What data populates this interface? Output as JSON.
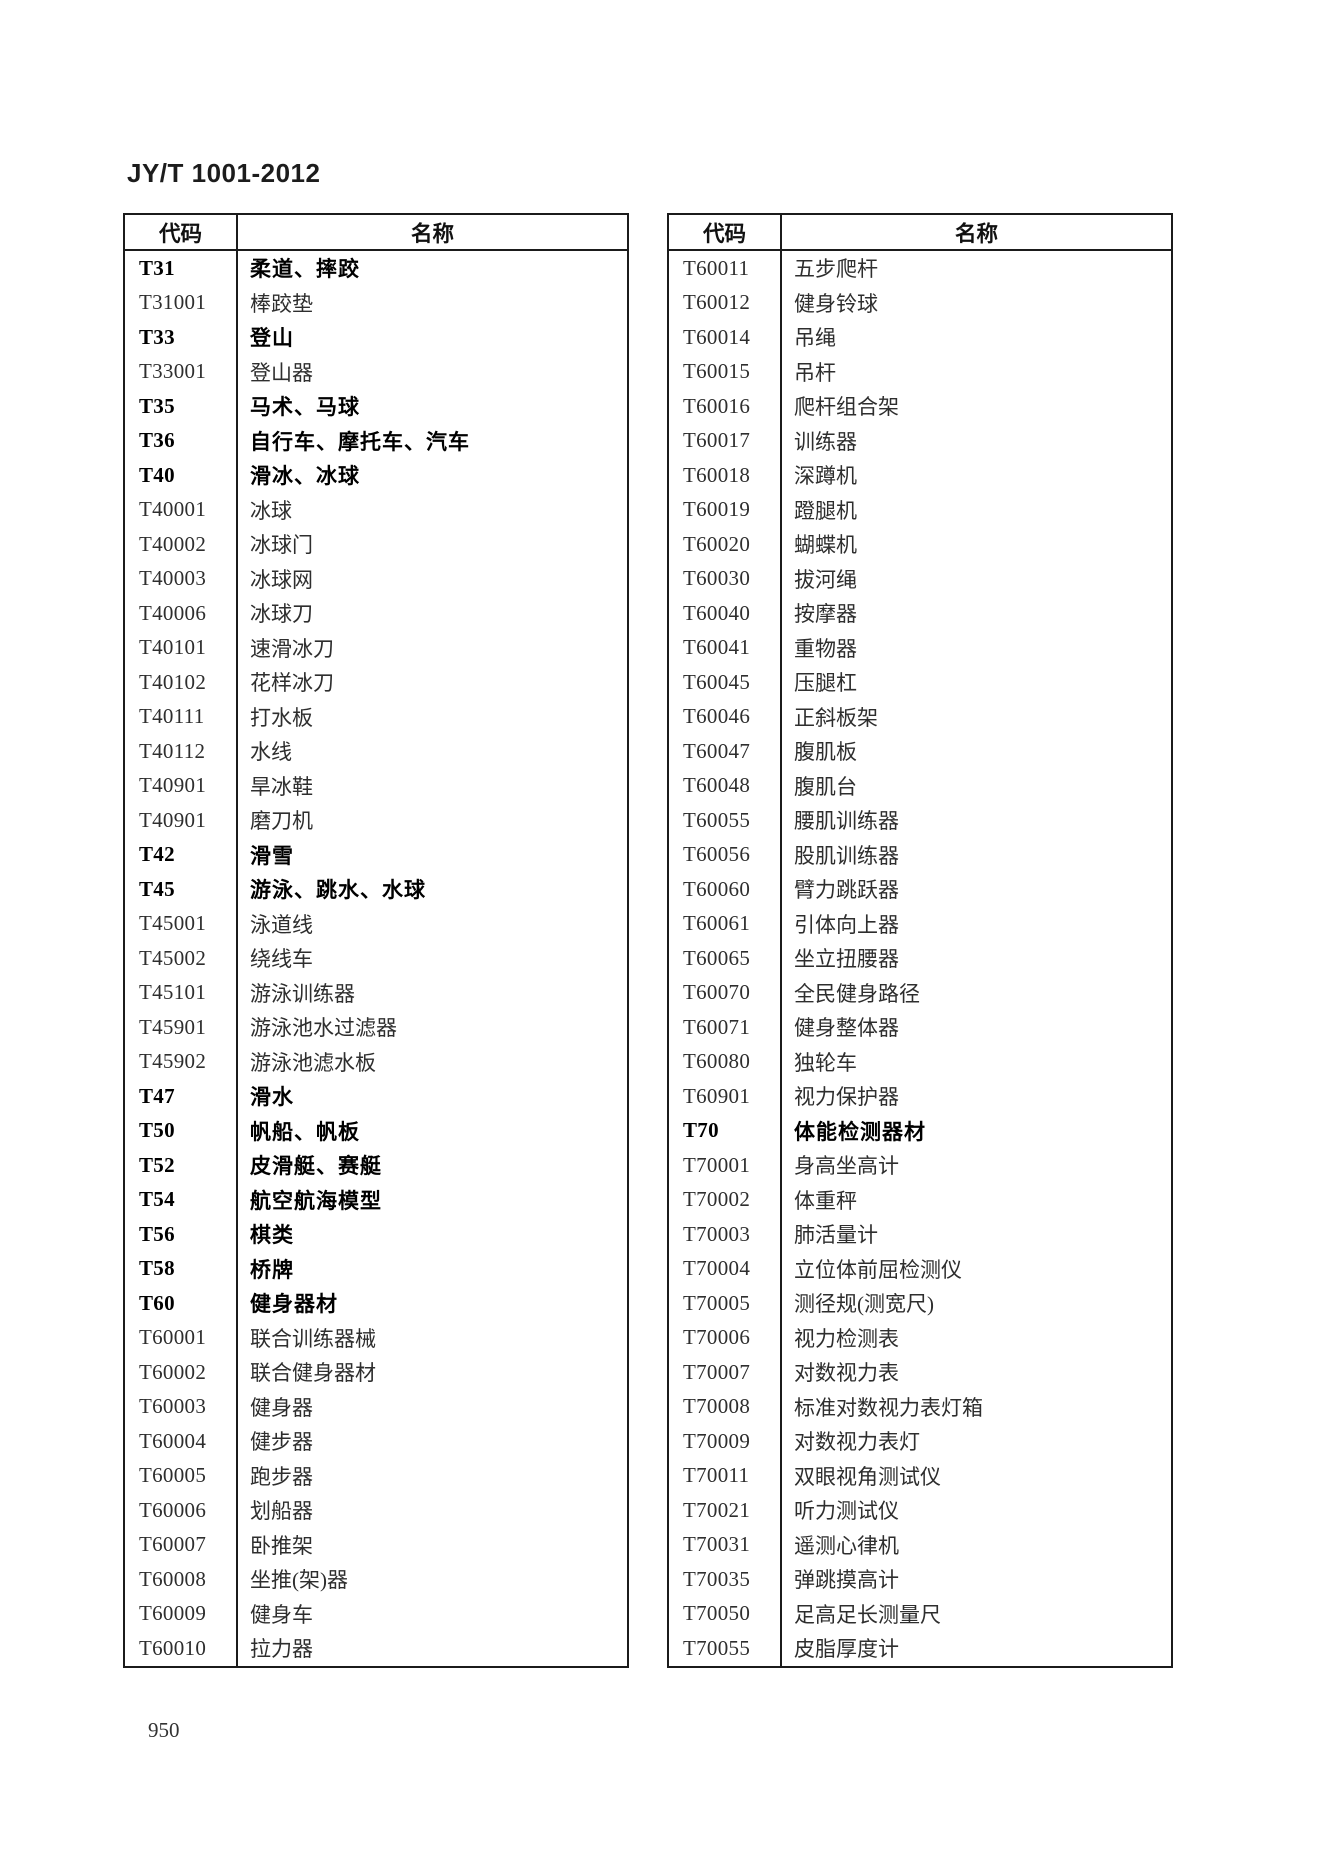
{
  "page": {
    "doc_code": "JY/T 1001-2012",
    "page_number": "950"
  },
  "tables": [
    {
      "headers": {
        "code": "代码",
        "name": "名称"
      },
      "rows": [
        {
          "code": "T31",
          "name": "柔道、摔跤",
          "bold": true
        },
        {
          "code": "T31001",
          "name": "棒跤垫"
        },
        {
          "code": "T33",
          "name": "登山",
          "bold": true
        },
        {
          "code": "T33001",
          "name": "登山器"
        },
        {
          "code": "T35",
          "name": "马术、马球",
          "bold": true
        },
        {
          "code": "T36",
          "name": "自行车、摩托车、汽车",
          "bold": true
        },
        {
          "code": "T40",
          "name": "滑冰、冰球",
          "bold": true
        },
        {
          "code": "T40001",
          "name": "冰球"
        },
        {
          "code": "T40002",
          "name": "冰球门"
        },
        {
          "code": "T40003",
          "name": "冰球网"
        },
        {
          "code": "T40006",
          "name": "冰球刀"
        },
        {
          "code": "T40101",
          "name": "速滑冰刀"
        },
        {
          "code": "T40102",
          "name": "花样冰刀"
        },
        {
          "code": "T40111",
          "name": "打水板"
        },
        {
          "code": "T40112",
          "name": "水线"
        },
        {
          "code": "T40901",
          "name": "旱冰鞋"
        },
        {
          "code": "T40901",
          "name": "磨刀机"
        },
        {
          "code": "T42",
          "name": "滑雪",
          "bold": true
        },
        {
          "code": "T45",
          "name": "游泳、跳水、水球",
          "bold": true
        },
        {
          "code": "T45001",
          "name": "泳道线"
        },
        {
          "code": "T45002",
          "name": "绕线车"
        },
        {
          "code": "T45101",
          "name": "游泳训练器"
        },
        {
          "code": "T45901",
          "name": "游泳池水过滤器"
        },
        {
          "code": "T45902",
          "name": "游泳池滤水板"
        },
        {
          "code": "T47",
          "name": "滑水",
          "bold": true
        },
        {
          "code": "T50",
          "name": "帆船、帆板",
          "bold": true
        },
        {
          "code": "T52",
          "name": "皮滑艇、赛艇",
          "bold": true
        },
        {
          "code": "T54",
          "name": "航空航海模型",
          "bold": true
        },
        {
          "code": "T56",
          "name": "棋类",
          "bold": true
        },
        {
          "code": "T58",
          "name": "桥牌",
          "bold": true
        },
        {
          "code": "T60",
          "name": "健身器材",
          "bold": true
        },
        {
          "code": "T60001",
          "name": "联合训练器械"
        },
        {
          "code": "T60002",
          "name": "联合健身器材"
        },
        {
          "code": "T60003",
          "name": "健身器"
        },
        {
          "code": "T60004",
          "name": "健步器"
        },
        {
          "code": "T60005",
          "name": "跑步器"
        },
        {
          "code": "T60006",
          "name": "划船器"
        },
        {
          "code": "T60007",
          "name": "卧推架"
        },
        {
          "code": "T60008",
          "name": "坐推(架)器"
        },
        {
          "code": "T60009",
          "name": "健身车"
        },
        {
          "code": "T60010",
          "name": "拉力器"
        }
      ]
    },
    {
      "headers": {
        "code": "代码",
        "name": "名称"
      },
      "rows": [
        {
          "code": "T60011",
          "name": "五步爬杆"
        },
        {
          "code": "T60012",
          "name": "健身铃球"
        },
        {
          "code": "T60014",
          "name": "吊绳"
        },
        {
          "code": "T60015",
          "name": "吊杆"
        },
        {
          "code": "T60016",
          "name": "爬杆组合架"
        },
        {
          "code": "T60017",
          "name": "训练器"
        },
        {
          "code": "T60018",
          "name": "深蹲机"
        },
        {
          "code": "T60019",
          "name": "蹬腿机"
        },
        {
          "code": "T60020",
          "name": "蝴蝶机"
        },
        {
          "code": "T60030",
          "name": "拔河绳"
        },
        {
          "code": "T60040",
          "name": "按摩器"
        },
        {
          "code": "T60041",
          "name": "重物器"
        },
        {
          "code": "T60045",
          "name": "压腿杠"
        },
        {
          "code": "T60046",
          "name": "正斜板架"
        },
        {
          "code": "T60047",
          "name": "腹肌板"
        },
        {
          "code": "T60048",
          "name": "腹肌台"
        },
        {
          "code": "T60055",
          "name": "腰肌训练器"
        },
        {
          "code": "T60056",
          "name": "股肌训练器"
        },
        {
          "code": "T60060",
          "name": "臂力跳跃器"
        },
        {
          "code": "T60061",
          "name": "引体向上器"
        },
        {
          "code": "T60065",
          "name": "坐立扭腰器"
        },
        {
          "code": "T60070",
          "name": "全民健身路径"
        },
        {
          "code": "T60071",
          "name": "健身整体器"
        },
        {
          "code": "T60080",
          "name": "独轮车"
        },
        {
          "code": "T60901",
          "name": "视力保护器"
        },
        {
          "code": "T70",
          "name": "体能检测器材",
          "bold": true
        },
        {
          "code": "T70001",
          "name": "身高坐高计"
        },
        {
          "code": "T70002",
          "name": "体重秤"
        },
        {
          "code": "T70003",
          "name": "肺活量计"
        },
        {
          "code": "T70004",
          "name": "立位体前屈检测仪"
        },
        {
          "code": "T70005",
          "name": "测径规(测宽尺)"
        },
        {
          "code": "T70006",
          "name": "视力检测表"
        },
        {
          "code": "T70007",
          "name": "对数视力表"
        },
        {
          "code": "T70008",
          "name": "标准对数视力表灯箱"
        },
        {
          "code": "T70009",
          "name": "对数视力表灯"
        },
        {
          "code": "T70011",
          "name": "双眼视角测试仪"
        },
        {
          "code": "T70021",
          "name": "听力测试仪"
        },
        {
          "code": "T70031",
          "name": "遥测心律机"
        },
        {
          "code": "T70035",
          "name": "弹跳摸高计"
        },
        {
          "code": "T70050",
          "name": "足高足长测量尺"
        },
        {
          "code": "T70055",
          "name": "皮脂厚度计"
        }
      ]
    }
  ]
}
